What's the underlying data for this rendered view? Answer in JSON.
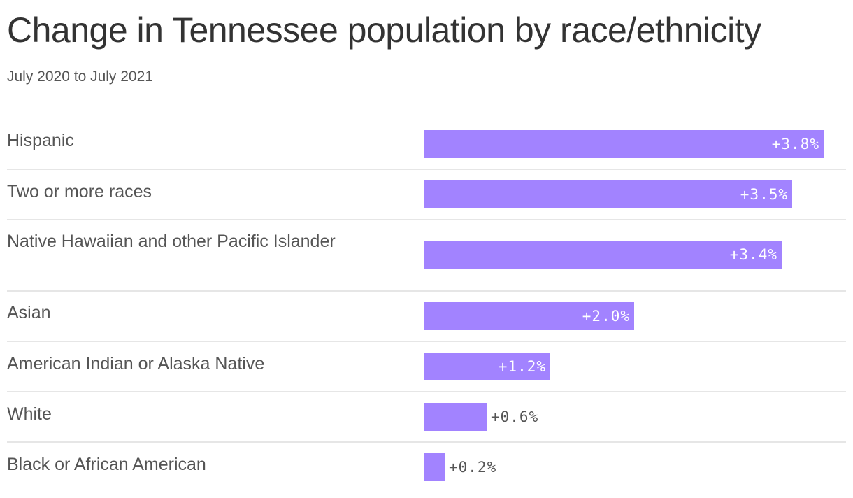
{
  "header": {
    "title": "Change in Tennessee population by race/ethnicity",
    "subtitle": "July 2020 to July 2021"
  },
  "colors": {
    "bar": "#a283ff",
    "divider": "#e6e6e6",
    "text": "#555555"
  },
  "rows": [
    {
      "label": "Hispanic",
      "value": "+3.8%"
    },
    {
      "label": "Two or more races",
      "value": "+3.5%"
    },
    {
      "label": "Native Hawaiian and other Pacific Islander",
      "value": "+3.4%"
    },
    {
      "label": "Asian",
      "value": "+2.0%"
    },
    {
      "label": "American Indian or Alaska Native",
      "value": "+1.2%"
    },
    {
      "label": "White",
      "value": "+0.6%"
    },
    {
      "label": "Black or African American",
      "value": "+0.2%"
    }
  ],
  "chart_data": {
    "type": "bar",
    "orientation": "horizontal",
    "title": "Change in Tennessee population by race/ethnicity",
    "subtitle": "July 2020 to July 2021",
    "categories": [
      "Hispanic",
      "Two or more races",
      "Native Hawaiian and other Pacific Islander",
      "Asian",
      "American Indian or Alaska Native",
      "White",
      "Black or African American"
    ],
    "values": [
      3.8,
      3.5,
      3.4,
      2.0,
      1.2,
      0.6,
      0.2
    ],
    "value_labels": [
      "+3.8%",
      "+3.5%",
      "+3.4%",
      "+2.0%",
      "+1.2%",
      "+0.6%",
      "+0.2%"
    ],
    "unit": "%",
    "xlabel": "",
    "ylabel": "",
    "grid": false,
    "legend": "none"
  }
}
